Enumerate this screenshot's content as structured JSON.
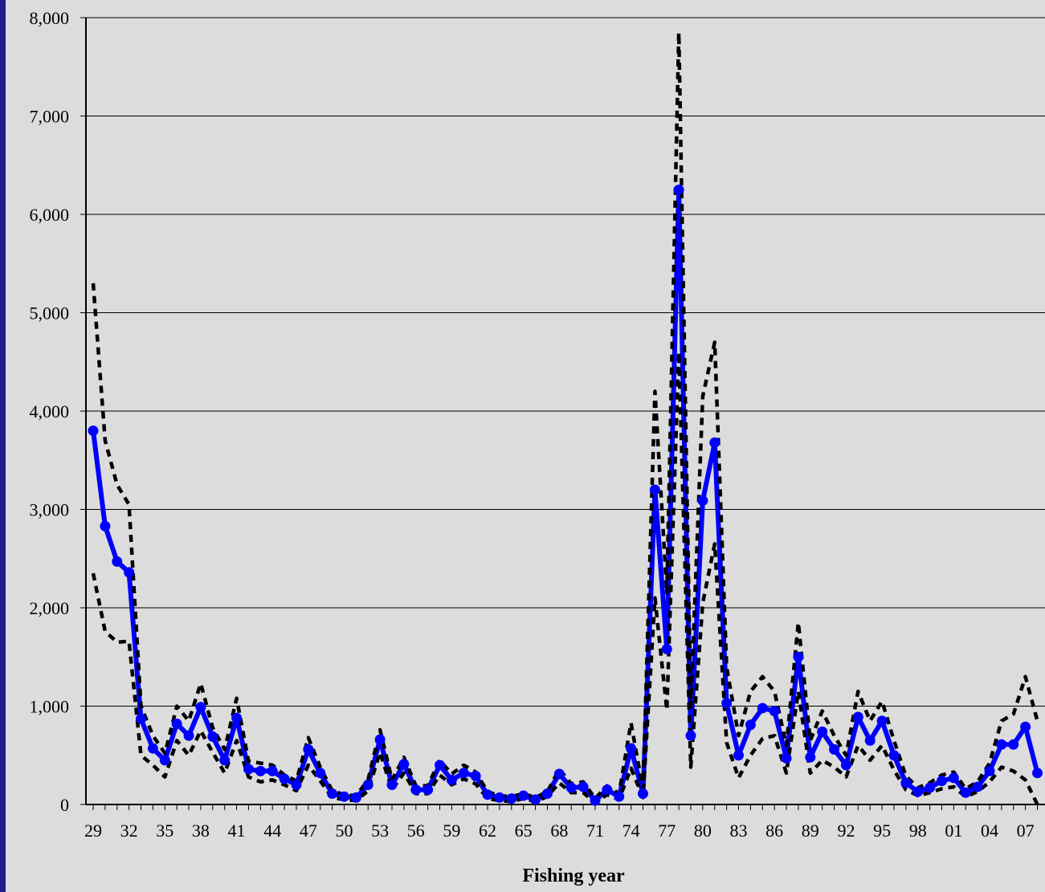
{
  "chart_data": {
    "type": "line",
    "title": "",
    "xlabel": "Fishing year",
    "ylabel": "",
    "ylim": [
      0,
      8000
    ],
    "y_ticks": [
      0,
      1000,
      2000,
      3000,
      4000,
      5000,
      6000,
      7000,
      8000
    ],
    "y_tick_labels": [
      "0",
      "1,000",
      "2,000",
      "3,000",
      "4,000",
      "5,000",
      "6,000",
      "7,000",
      "8,000"
    ],
    "x_tick_labels": [
      "29",
      "32",
      "35",
      "38",
      "41",
      "44",
      "47",
      "50",
      "53",
      "56",
      "59",
      "62",
      "65",
      "68",
      "71",
      "74",
      "77",
      "80",
      "83",
      "86",
      "89",
      "92",
      "95",
      "98",
      "01",
      "04",
      "07"
    ],
    "grid": "horizontal",
    "legend": "none",
    "x": [
      1929,
      1930,
      1931,
      1932,
      1933,
      1934,
      1935,
      1936,
      1937,
      1938,
      1939,
      1940,
      1941,
      1942,
      1943,
      1944,
      1945,
      1946,
      1947,
      1948,
      1949,
      1950,
      1951,
      1952,
      1953,
      1954,
      1955,
      1956,
      1957,
      1958,
      1959,
      1960,
      1961,
      1962,
      1963,
      1964,
      1965,
      1966,
      1967,
      1968,
      1969,
      1970,
      1971,
      1972,
      1973,
      1974,
      1975,
      1976,
      1977,
      1978,
      1979,
      1980,
      1981,
      1982,
      1983,
      1984,
      1985,
      1986,
      1987,
      1988,
      1989,
      1990,
      1991,
      1992,
      1993,
      1994,
      1995,
      1996,
      1997,
      1998,
      1999,
      2000,
      2001,
      2002,
      2003,
      2004,
      2005,
      2006,
      2007,
      2008
    ],
    "series": [
      {
        "role": "estimate",
        "color": "#0000FF",
        "values": [
          3800,
          2830,
          2470,
          2360,
          870,
          570,
          450,
          820,
          700,
          990,
          690,
          450,
          880,
          360,
          340,
          340,
          260,
          200,
          560,
          320,
          110,
          80,
          70,
          200,
          660,
          200,
          410,
          150,
          150,
          400,
          250,
          320,
          290,
          100,
          70,
          60,
          90,
          50,
          110,
          310,
          170,
          180,
          40,
          150,
          80,
          570,
          110,
          3200,
          1580,
          6250,
          700,
          3090,
          3680,
          1030,
          500,
          810,
          980,
          950,
          470,
          1500,
          480,
          740,
          560,
          400,
          890,
          650,
          850,
          500,
          220,
          130,
          170,
          240,
          270,
          120,
          180,
          340,
          610,
          610,
          790,
          320
        ]
      },
      {
        "role": "upper bound",
        "color": "#000000",
        "style": "dotted",
        "values": [
          5300,
          3700,
          3250,
          3050,
          1000,
          700,
          520,
          1000,
          850,
          1230,
          780,
          560,
          1080,
          440,
          420,
          400,
          300,
          240,
          680,
          380,
          140,
          100,
          90,
          250,
          760,
          250,
          480,
          190,
          190,
          450,
          310,
          400,
          330,
          130,
          90,
          80,
          110,
          70,
          130,
          360,
          210,
          230,
          60,
          190,
          110,
          830,
          150,
          4200,
          2150,
          7850,
          1000,
          4150,
          4700,
          1400,
          700,
          1150,
          1300,
          1150,
          600,
          1850,
          650,
          950,
          700,
          500,
          1150,
          850,
          1050,
          650,
          290,
          170,
          220,
          300,
          330,
          160,
          230,
          420,
          850,
          920,
          1300,
          850
        ]
      },
      {
        "role": "lower bound",
        "color": "#000000",
        "style": "dotted",
        "values": [
          2350,
          1760,
          1650,
          1660,
          500,
          400,
          280,
          650,
          500,
          750,
          530,
          320,
          650,
          280,
          230,
          250,
          200,
          140,
          400,
          240,
          70,
          50,
          40,
          140,
          530,
          150,
          320,
          110,
          110,
          300,
          200,
          260,
          210,
          60,
          40,
          30,
          60,
          30,
          80,
          220,
          120,
          120,
          20,
          100,
          50,
          370,
          70,
          2100,
          960,
          4600,
          380,
          2050,
          2650,
          630,
          270,
          500,
          670,
          700,
          320,
          1150,
          320,
          450,
          380,
          280,
          600,
          450,
          600,
          350,
          150,
          90,
          120,
          160,
          180,
          80,
          130,
          230,
          380,
          340,
          250,
          0
        ]
      }
    ]
  }
}
